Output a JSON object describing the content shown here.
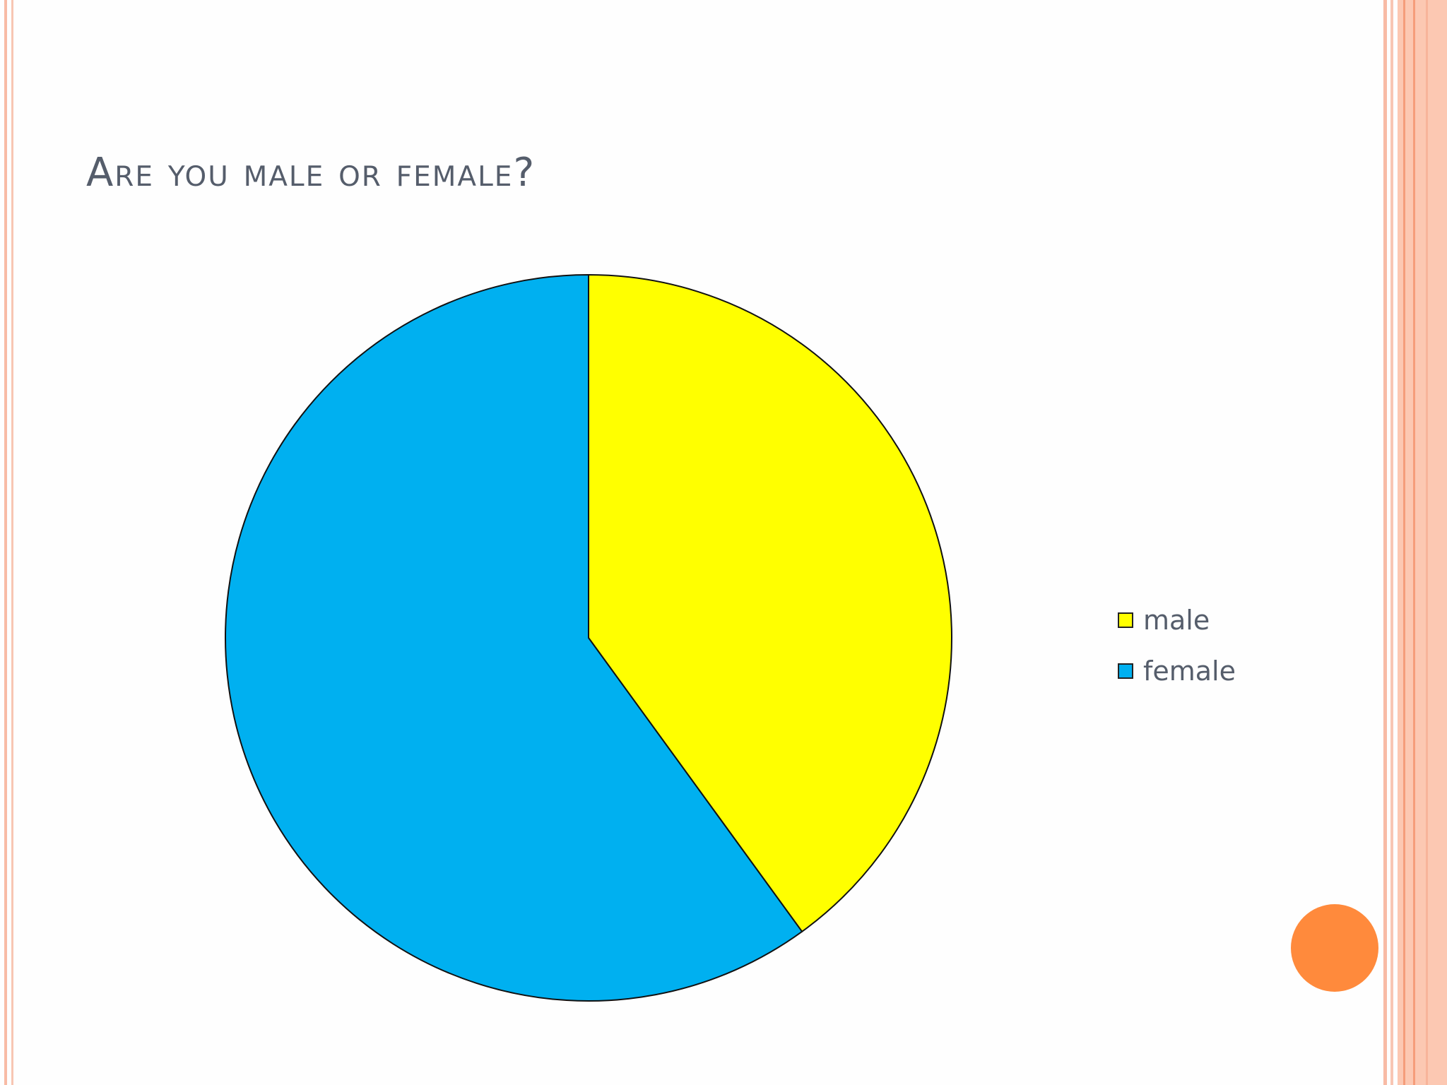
{
  "slide": {
    "title": "Are you male or female?",
    "accent_color": "#ff8a3c",
    "border_color": "#f8bba5"
  },
  "chart_data": {
    "type": "pie",
    "title": "Are you male or female?",
    "categories": [
      "male",
      "female"
    ],
    "values": [
      40,
      60
    ],
    "colors": [
      "#ffff00",
      "#00b0f0"
    ],
    "start_angle": "12 o'clock",
    "direction": "clockwise",
    "legend": {
      "placement": "right",
      "entries": [
        "male",
        "female"
      ]
    }
  }
}
